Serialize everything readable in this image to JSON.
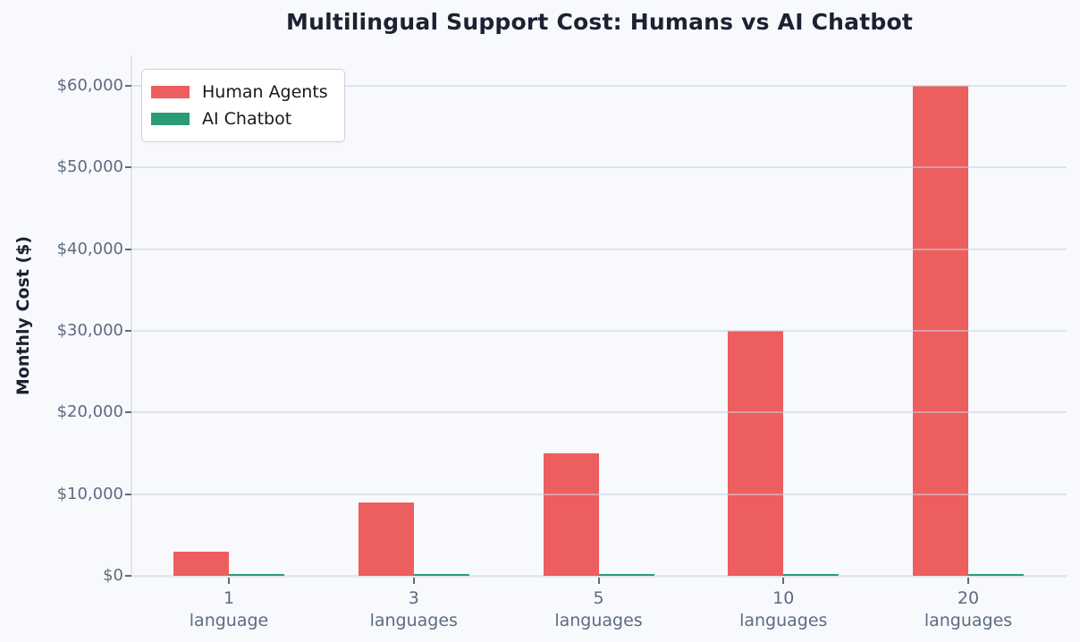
{
  "chart_data": {
    "type": "bar",
    "title": "Multilingual Support Cost: Humans vs AI Chatbot",
    "xlabel": "",
    "ylabel": "Monthly Cost ($)",
    "categories": [
      [
        "1",
        "language"
      ],
      [
        "3",
        "languages"
      ],
      [
        "5",
        "languages"
      ],
      [
        "10",
        "languages"
      ],
      [
        "20",
        "languages"
      ]
    ],
    "series": [
      {
        "name": "Human Agents",
        "color": "#ed5e5e",
        "values": [
          3000,
          9000,
          15000,
          30000,
          60000
        ]
      },
      {
        "name": "AI Chatbot",
        "color": "#2a9d74",
        "values": [
          200,
          200,
          200,
          200,
          200
        ]
      }
    ],
    "ylim": [
      0,
      63700
    ],
    "yticks": [
      0,
      10000,
      20000,
      30000,
      40000,
      50000,
      60000
    ],
    "ytick_labels": [
      "$0",
      "$10,000",
      "$20,000",
      "$30,000",
      "$40,000",
      "$50,000",
      "$60,000"
    ],
    "grid": true,
    "legend_position": "upper left"
  },
  "colors": {
    "background": "#f8f9fc",
    "grid": "rgba(203,208,222,0.55)",
    "axis": "#e4e6ed",
    "tick": "#5d6b82",
    "tick_label": "#5d6b82",
    "title": "#1c2133",
    "legend_bg": "#ffffff",
    "legend_border": "#cfd2da",
    "legend_text": "#16191f"
  }
}
